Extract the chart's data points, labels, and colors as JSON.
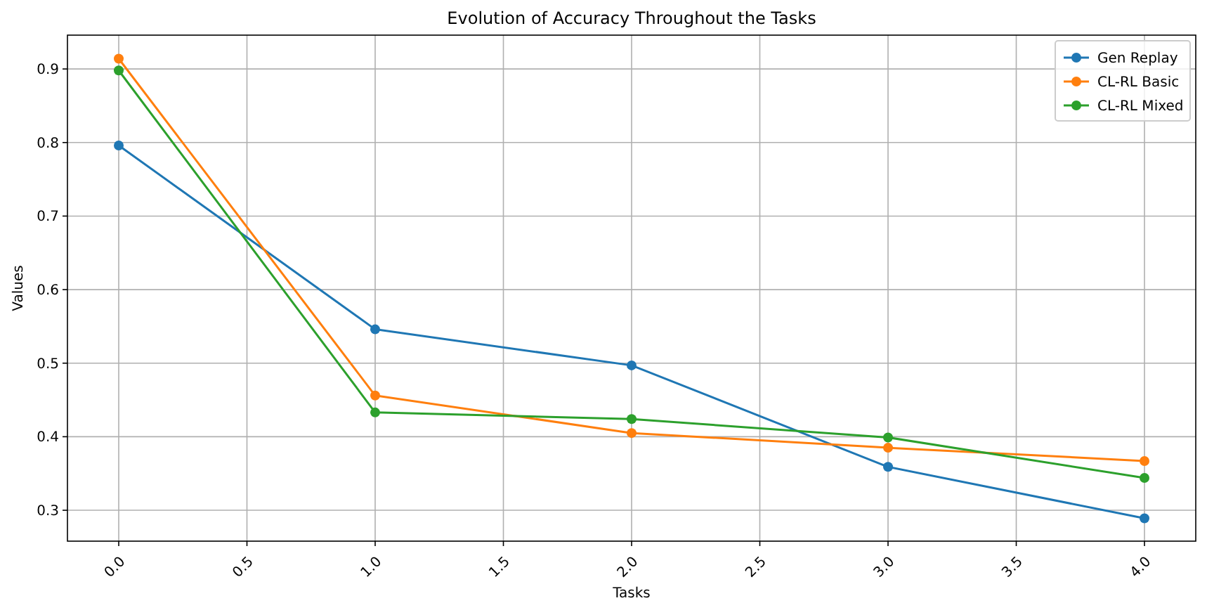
{
  "chart_data": {
    "type": "line",
    "title": "Evolution of Accuracy Throughout the Tasks",
    "xlabel": "Tasks",
    "ylabel": "Values",
    "x": [
      0,
      1,
      2,
      3,
      4
    ],
    "series": [
      {
        "name": "Gen Replay",
        "color": "#1f77b4",
        "values": [
          0.796,
          0.546,
          0.497,
          0.359,
          0.289
        ]
      },
      {
        "name": "CL-RL Basic",
        "color": "#ff7f0e",
        "values": [
          0.914,
          0.456,
          0.405,
          0.385,
          0.367
        ]
      },
      {
        "name": "CL-RL Mixed",
        "color": "#2ca02c",
        "values": [
          0.898,
          0.433,
          0.424,
          0.399,
          0.344
        ]
      }
    ],
    "xlim": [
      -0.2,
      4.2
    ],
    "ylim": [
      0.258,
      0.946
    ],
    "xticks": [
      {
        "value": 0,
        "label": "0.0"
      },
      {
        "value": 0.5,
        "label": "0.5"
      },
      {
        "value": 1,
        "label": "1.0"
      },
      {
        "value": 1.5,
        "label": "1.5"
      },
      {
        "value": 2,
        "label": "2.0"
      },
      {
        "value": 2.5,
        "label": "2.5"
      },
      {
        "value": 3,
        "label": "3.0"
      },
      {
        "value": 3.5,
        "label": "3.5"
      },
      {
        "value": 4,
        "label": "4.0"
      }
    ],
    "yticks": [
      0.3,
      0.4,
      0.5,
      0.6,
      0.7,
      0.8,
      0.9
    ],
    "grid": true,
    "legend": "top right",
    "marker": "circle",
    "line_style": "solid"
  }
}
